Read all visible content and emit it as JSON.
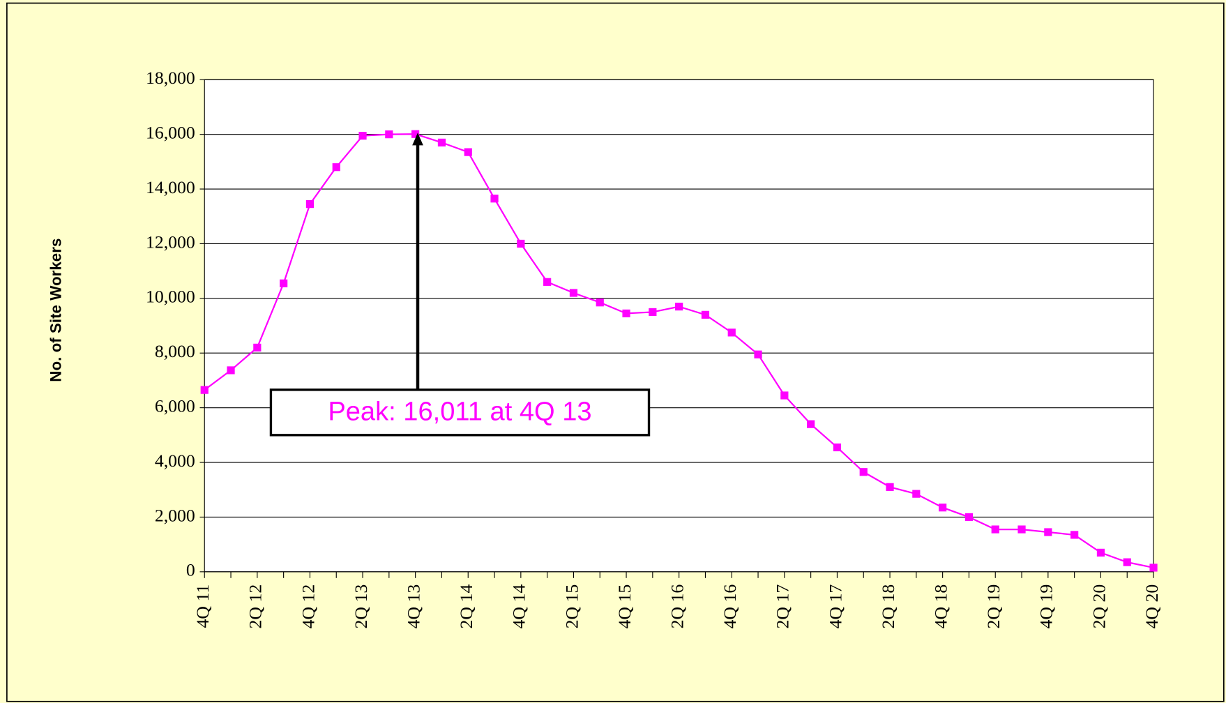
{
  "chart_data": {
    "type": "line",
    "y_label": "No. of Site Workers",
    "annotation": "Peak: 16,011 at 4Q 13",
    "categories": [
      "4Q 11",
      null,
      "2Q 12",
      null,
      "4Q 12",
      null,
      "2Q 13",
      null,
      "4Q 13",
      null,
      "2Q 14",
      null,
      "4Q 14",
      null,
      "2Q 15",
      null,
      "4Q 15",
      null,
      "2Q 16",
      null,
      "4Q 16",
      null,
      "2Q 17",
      null,
      "4Q 17",
      null,
      "2Q 18",
      null,
      "4Q 18",
      null,
      "2Q 19",
      null,
      "4Q 19",
      null,
      "2Q 20",
      null,
      "4Q 20"
    ],
    "series": [
      {
        "color": "#ff00ff",
        "values": [
          6650,
          7370,
          8200,
          10550,
          13450,
          14800,
          15950,
          16000,
          16011,
          15700,
          15350,
          13650,
          12000,
          10600,
          10200,
          9850,
          9450,
          9500,
          9700,
          9400,
          8750,
          7950,
          6450,
          5400,
          4550,
          3650,
          3100,
          2850,
          2350,
          2000,
          1550,
          1550,
          1450,
          1350,
          700,
          350,
          150
        ]
      }
    ],
    "ylim": [
      0,
      18000
    ],
    "yticks": [
      0,
      {
        "value": 2000,
        "label": "2,000"
      },
      {
        "value": 4000,
        "label": "4,000"
      },
      {
        "value": 6000,
        "label": "6,000"
      },
      {
        "value": 8000,
        "label": "8,000"
      },
      {
        "value": 10000,
        "label": "10,000"
      },
      {
        "value": 12000,
        "label": "12,000"
      },
      {
        "value": 14000,
        "label": "14,000"
      },
      {
        "value": 16000,
        "label": "16,000"
      },
      {
        "value": 18000,
        "label": "18,000"
      }
    ],
    "grid": true
  }
}
